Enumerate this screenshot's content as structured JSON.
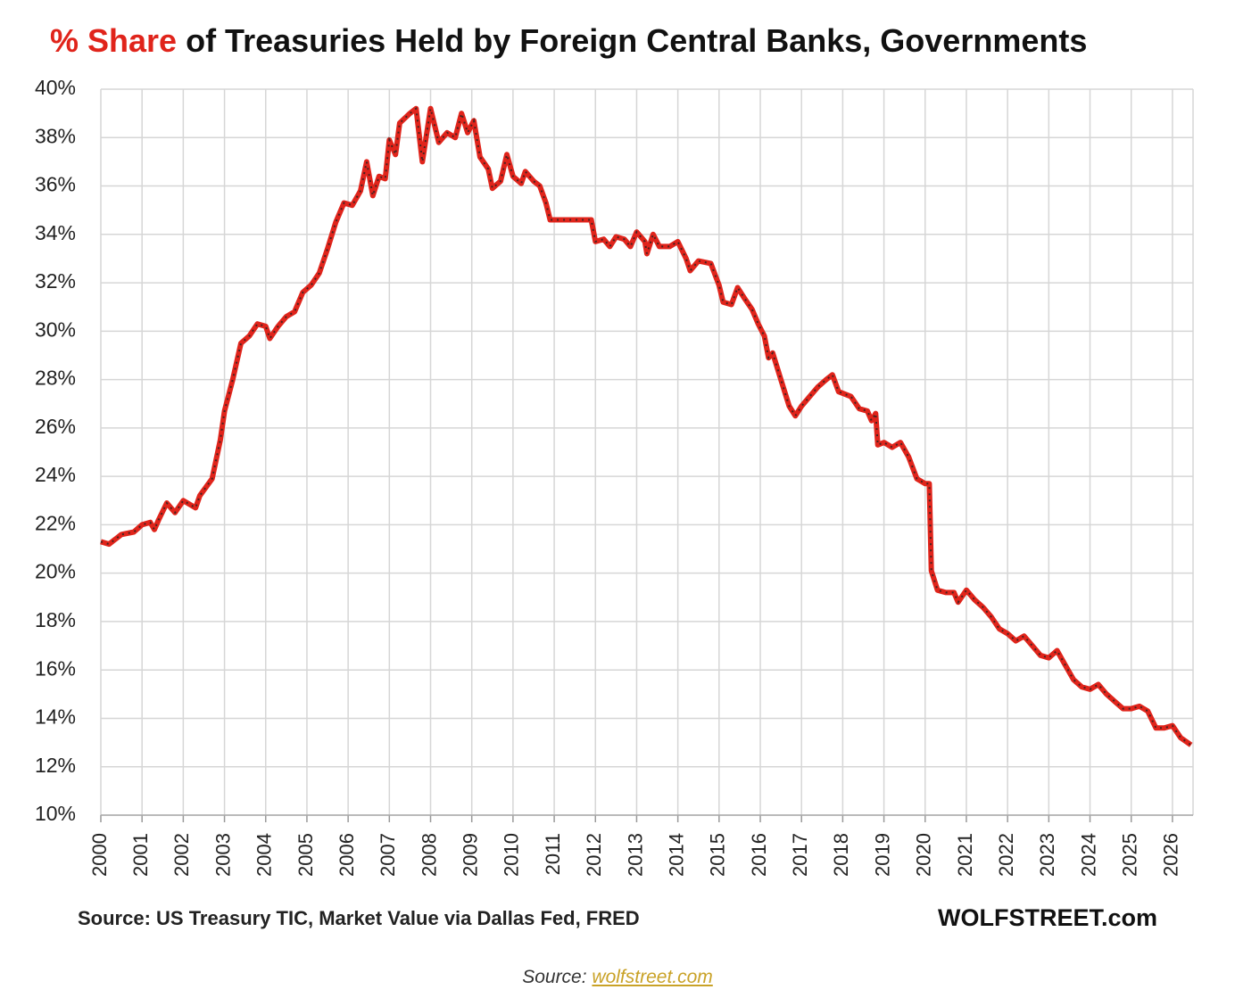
{
  "chart_data": {
    "type": "line",
    "title": {
      "highlight": "% Share",
      "rest": "of Treasuries Held by Foreign Central Banks, Governments"
    },
    "source": "Source: US Treasury  TIC, Market Value via Dallas Fed, FRED",
    "brand": "WOLFSTREET.com",
    "color": "#e0241b",
    "grid": true,
    "xlim": [
      2000,
      2026.5
    ],
    "xticks": [
      2000,
      2001,
      2002,
      2003,
      2004,
      2005,
      2006,
      2007,
      2008,
      2009,
      2010,
      2011,
      2012,
      2013,
      2014,
      2015,
      2016,
      2017,
      2018,
      2019,
      2020,
      2021,
      2022,
      2023,
      2024,
      2025,
      2026
    ],
    "ylim": [
      10,
      40
    ],
    "yticks": [
      {
        "value": 10,
        "label": "10%"
      },
      {
        "value": 12,
        "label": "12%"
      },
      {
        "value": 14,
        "label": "14%"
      },
      {
        "value": 16,
        "label": "16%"
      },
      {
        "value": 18,
        "label": "18%"
      },
      {
        "value": 20,
        "label": "20%"
      },
      {
        "value": 22,
        "label": "22%"
      },
      {
        "value": 24,
        "label": "24%"
      },
      {
        "value": 26,
        "label": "26%"
      },
      {
        "value": 28,
        "label": "28%"
      },
      {
        "value": 30,
        "label": "30%"
      },
      {
        "value": 32,
        "label": "32%"
      },
      {
        "value": 34,
        "label": "34%"
      },
      {
        "value": 36,
        "label": "36%"
      },
      {
        "value": 38,
        "label": "38%"
      },
      {
        "value": 40,
        "label": "40%"
      }
    ],
    "x": [
      2000.0,
      2000.2,
      2000.5,
      2000.8,
      2001.0,
      2001.2,
      2001.3,
      2001.4,
      2001.6,
      2001.8,
      2002.0,
      2002.3,
      2002.4,
      2002.7,
      2002.9,
      2003.0,
      2003.2,
      2003.4,
      2003.6,
      2003.8,
      2004.0,
      2004.1,
      2004.3,
      2004.5,
      2004.7,
      2004.9,
      2005.1,
      2005.3,
      2005.5,
      2005.7,
      2005.9,
      2006.1,
      2006.3,
      2006.45,
      2006.6,
      2006.75,
      2006.9,
      2007.0,
      2007.15,
      2007.25,
      2007.5,
      2007.65,
      2007.8,
      2008.0,
      2008.2,
      2008.4,
      2008.6,
      2008.75,
      2008.9,
      2009.05,
      2009.2,
      2009.4,
      2009.5,
      2009.7,
      2009.85,
      2010.0,
      2010.2,
      2010.3,
      2010.5,
      2010.65,
      2010.8,
      2010.9,
      2011.9,
      2012.0,
      2012.2,
      2012.35,
      2012.5,
      2012.7,
      2012.85,
      2013.0,
      2013.2,
      2013.25,
      2013.4,
      2013.55,
      2013.8,
      2014.0,
      2014.2,
      2014.3,
      2014.5,
      2014.8,
      2015.0,
      2015.1,
      2015.3,
      2015.45,
      2015.6,
      2015.8,
      2015.95,
      2016.1,
      2016.2,
      2016.3,
      2016.5,
      2016.7,
      2016.85,
      2017.0,
      2017.2,
      2017.4,
      2017.6,
      2017.75,
      2017.9,
      2018.2,
      2018.4,
      2018.6,
      2018.7,
      2018.8,
      2018.85,
      2019.0,
      2019.2,
      2019.4,
      2019.6,
      2019.8,
      2020.0,
      2020.1,
      2020.15,
      2020.3,
      2020.5,
      2020.7,
      2020.8,
      2021.0,
      2021.2,
      2021.4,
      2021.6,
      2021.8,
      2022.0,
      2022.2,
      2022.4,
      2022.6,
      2022.8,
      2023.0,
      2023.2,
      2023.4,
      2023.6,
      2023.8,
      2024.0,
      2024.2,
      2024.4,
      2024.6,
      2024.8,
      2025.0,
      2025.2,
      2025.4,
      2025.6,
      2025.8,
      2026.0,
      2026.2,
      2026.45
    ],
    "values": [
      21.3,
      21.2,
      21.6,
      21.7,
      22.0,
      22.1,
      21.8,
      22.2,
      22.9,
      22.5,
      23.0,
      22.7,
      23.2,
      23.9,
      25.5,
      26.7,
      28.0,
      29.5,
      29.8,
      30.3,
      30.2,
      29.7,
      30.2,
      30.6,
      30.8,
      31.6,
      31.9,
      32.4,
      33.4,
      34.5,
      35.3,
      35.2,
      35.8,
      37.0,
      35.6,
      36.4,
      36.3,
      37.9,
      37.3,
      38.6,
      39.0,
      39.2,
      37.0,
      39.2,
      37.8,
      38.2,
      38.0,
      39.0,
      38.2,
      38.7,
      37.2,
      36.7,
      35.9,
      36.2,
      37.3,
      36.4,
      36.1,
      36.6,
      36.2,
      36.0,
      35.3,
      34.6,
      34.6,
      33.7,
      33.8,
      33.5,
      33.9,
      33.8,
      33.5,
      34.1,
      33.7,
      33.2,
      34.0,
      33.5,
      33.5,
      33.7,
      33.0,
      32.5,
      32.9,
      32.8,
      31.9,
      31.2,
      31.1,
      31.8,
      31.4,
      30.9,
      30.3,
      29.8,
      28.9,
      29.1,
      28.0,
      26.9,
      26.5,
      26.9,
      27.3,
      27.7,
      28.0,
      28.2,
      27.5,
      27.3,
      26.8,
      26.7,
      26.3,
      26.6,
      25.3,
      25.4,
      25.2,
      25.4,
      24.8,
      23.9,
      23.7,
      23.7,
      20.1,
      19.3,
      19.2,
      19.2,
      18.8,
      19.3,
      18.9,
      18.6,
      18.2,
      17.7,
      17.5,
      17.2,
      17.4,
      17.0,
      16.6,
      16.5,
      16.8,
      16.2,
      15.6,
      15.3,
      15.2,
      15.4,
      15.0,
      14.7,
      14.4,
      14.4,
      14.5,
      14.3,
      13.6,
      13.6,
      13.7,
      13.2,
      12.9
    ]
  },
  "caption": {
    "prefix": "Source:",
    "link": "wolfstreet.com"
  }
}
